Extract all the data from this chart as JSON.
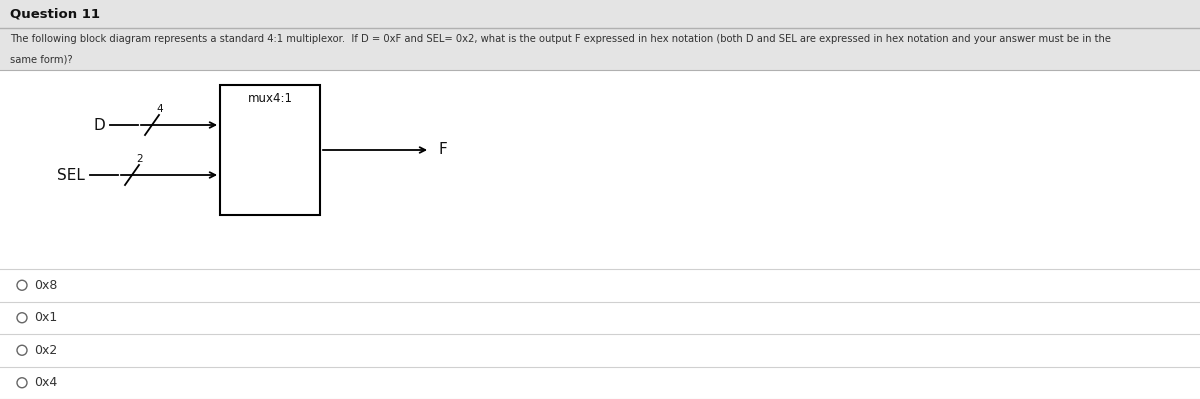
{
  "title": "Question 11",
  "question_text_line1": "The following block diagram represents a standard 4:1 multiplexor.  If D = 0xF and SEL= 0x2, what is the output F expressed in hex notation (both D and SEL are expressed in hex notation and your answer must be in the",
  "question_text_line2": "same form)?",
  "mux_label": "mux4:1",
  "D_label": "D",
  "SEL_label": "SEL",
  "F_label": "F",
  "D_bus_width": "4",
  "SEL_bus_width": "2",
  "options": [
    "0x8",
    "0x1",
    "0x2",
    "0x4"
  ],
  "bg_color": "#ffffff",
  "box_color": "#000000",
  "text_color": "#444444",
  "header_bg": "#e4e4e4",
  "option_line_color": "#d0d0d0",
  "question_bg": "#e4e4e4"
}
